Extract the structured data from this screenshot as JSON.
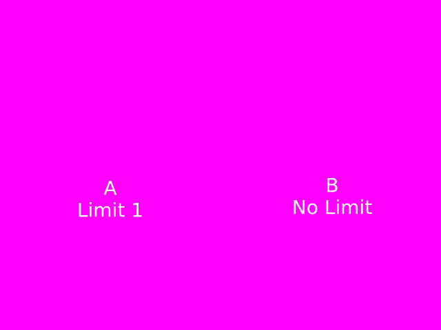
{
  "background_color": "#ff00ff",
  "text_color": "#ffffff",
  "option_a": {
    "letter": "A",
    "caption": "Limit 1"
  },
  "option_b": {
    "letter": "B",
    "caption": "No Limit"
  }
}
